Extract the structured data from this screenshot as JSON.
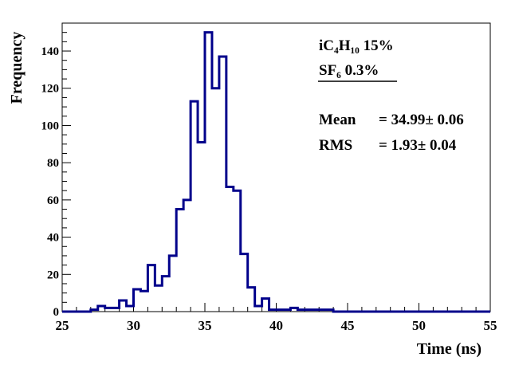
{
  "chart_data": {
    "type": "histogram",
    "xlabel": "Time (ns)",
    "ylabel": "Frequency",
    "xlim": [
      25,
      55
    ],
    "ylim": [
      0,
      155
    ],
    "bin_width": 0.5,
    "x_ticks": [
      25,
      30,
      35,
      40,
      45,
      50,
      55
    ],
    "y_ticks": [
      0,
      20,
      40,
      60,
      80,
      100,
      120,
      140
    ],
    "x_tick_labels": [
      "25",
      "30",
      "35",
      "40",
      "45",
      "50",
      "55"
    ],
    "y_tick_labels": [
      "0",
      "20",
      "40",
      "60",
      "80",
      "100",
      "120",
      "140"
    ],
    "series": [
      {
        "color": "#00008b",
        "bin_edges_start": 25,
        "values": [
          0,
          0,
          0,
          0,
          1,
          3,
          2,
          2,
          6,
          3,
          12,
          11,
          25,
          14,
          19,
          30,
          55,
          60,
          113,
          91,
          150,
          120,
          137,
          67,
          65,
          31,
          13,
          3,
          7,
          1,
          1,
          1,
          2,
          1,
          1,
          1,
          1,
          1,
          0,
          0,
          0,
          0,
          0,
          0,
          0,
          0,
          0,
          0,
          0,
          0,
          0,
          0,
          0,
          0,
          0,
          0,
          0,
          0,
          0,
          0
        ]
      }
    ],
    "legend": {
      "gas_line1": "iC₄H₁₀ 15%",
      "gas_line2": "SF₆ 0.3%",
      "mean_label": "Mean",
      "mean_value": "= 34.99± 0.06",
      "rms_label": "RMS",
      "rms_value": "= 1.93± 0.04"
    },
    "legend_placement": "top-right",
    "grid": false
  }
}
